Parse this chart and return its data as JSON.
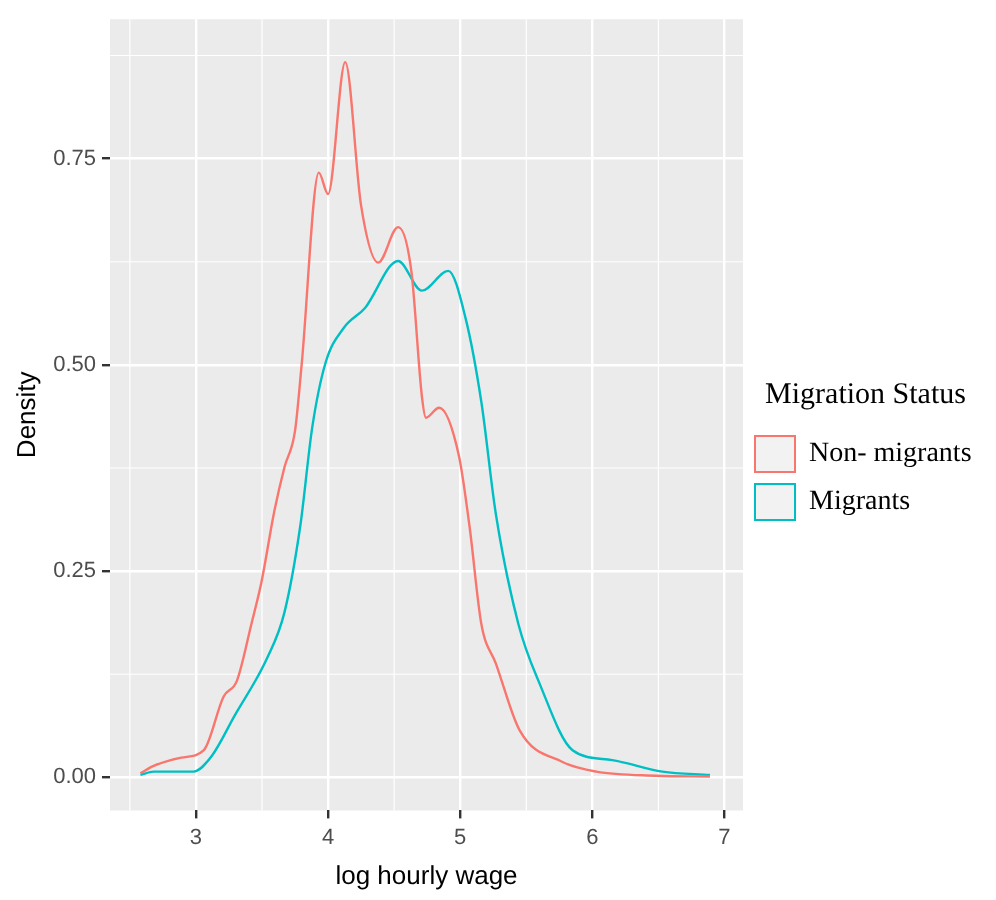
{
  "chart_data": {
    "type": "line",
    "xlabel": "log hourly wage",
    "ylabel": "Density",
    "legend_title": "Migration Status",
    "legend": "right",
    "grid": true,
    "marker": "none",
    "line_style": "solid",
    "xlim": [
      2.35,
      7.14
    ],
    "ylim": [
      -0.04,
      0.919
    ],
    "xticks": [
      3,
      4,
      5,
      6,
      7
    ],
    "yticks": [
      {
        "value": 0,
        "label": "0.00"
      },
      {
        "value": 0.25,
        "label": "0.25"
      },
      {
        "value": 0.5,
        "label": "0.50"
      },
      {
        "value": 0.75,
        "label": "0.75"
      }
    ],
    "series": [
      {
        "name": "Non- migrants",
        "color": "#f8766d",
        "x": [
          2.58,
          2.68,
          2.89,
          3.06,
          3.21,
          3.31,
          3.42,
          3.5,
          3.59,
          3.67,
          3.75,
          3.8,
          3.93,
          4.0,
          4.13,
          4.25,
          4.38,
          4.53,
          4.63,
          4.71,
          4.74,
          4.84,
          4.99,
          5.07,
          5.16,
          5.27,
          5.45,
          5.77,
          6.03,
          6.48,
          6.89
        ],
        "values": [
          0.005,
          0.014,
          0.024,
          0.033,
          0.098,
          0.117,
          0.186,
          0.24,
          0.32,
          0.376,
          0.42,
          0.5,
          0.733,
          0.707,
          0.867,
          0.693,
          0.624,
          0.667,
          0.614,
          0.462,
          0.436,
          0.448,
          0.39,
          0.305,
          0.186,
          0.138,
          0.057,
          0.019,
          0.007,
          0.002,
          0.001
        ]
      },
      {
        "name": "Migrants",
        "color": "#00bfc4",
        "x": [
          2.58,
          2.68,
          2.98,
          3.12,
          3.29,
          3.54,
          3.67,
          3.79,
          3.88,
          3.98,
          4.12,
          4.28,
          4.53,
          4.71,
          4.91,
          5.04,
          5.16,
          5.27,
          5.44,
          5.6,
          5.85,
          6.15,
          6.53,
          6.89
        ],
        "values": [
          0.003,
          0.007,
          0.007,
          0.026,
          0.074,
          0.145,
          0.2,
          0.305,
          0.424,
          0.502,
          0.545,
          0.569,
          0.626,
          0.59,
          0.614,
          0.557,
          0.455,
          0.319,
          0.186,
          0.114,
          0.033,
          0.021,
          0.007,
          0.003
        ]
      }
    ]
  }
}
